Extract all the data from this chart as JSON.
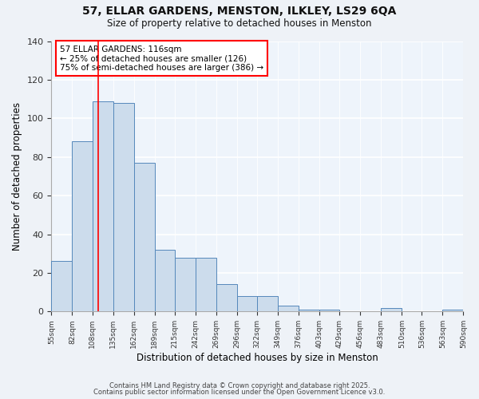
{
  "title": "57, ELLAR GARDENS, MENSTON, ILKLEY, LS29 6QA",
  "subtitle": "Size of property relative to detached houses in Menston",
  "xlabel": "Distribution of detached houses by size in Menston",
  "ylabel": "Number of detached properties",
  "bar_values": [
    26,
    88,
    109,
    108,
    77,
    32,
    28,
    28,
    14,
    8,
    8,
    3,
    1,
    1,
    0,
    0,
    2,
    0,
    0,
    1
  ],
  "bin_edges": [
    55,
    82,
    108,
    135,
    162,
    189,
    215,
    242,
    269,
    296,
    322,
    349,
    376,
    403,
    429,
    456,
    483,
    510,
    536,
    563,
    590
  ],
  "x_tick_labels": [
    "55sqm",
    "82sqm",
    "108sqm",
    "135sqm",
    "162sqm",
    "189sqm",
    "215sqm",
    "242sqm",
    "269sqm",
    "296sqm",
    "322sqm",
    "349sqm",
    "376sqm",
    "403sqm",
    "429sqm",
    "456sqm",
    "483sqm",
    "510sqm",
    "536sqm",
    "563sqm",
    "590sqm"
  ],
  "bar_color": "#ccdcec",
  "bar_edge_color": "#5588bb",
  "red_line_x": 116,
  "ylim": [
    0,
    140
  ],
  "yticks": [
    0,
    20,
    40,
    60,
    80,
    100,
    120,
    140
  ],
  "annotation_title": "57 ELLAR GARDENS: 116sqm",
  "annotation_line1": "← 25% of detached houses are smaller (126)",
  "annotation_line2": "75% of semi-detached houses are larger (386) →",
  "footnote1": "Contains HM Land Registry data © Crown copyright and database right 2025.",
  "footnote2": "Contains public sector information licensed under the Open Government Licence v3.0.",
  "bg_color": "#eef2f7",
  "plot_bg_color": "#eef4fb"
}
